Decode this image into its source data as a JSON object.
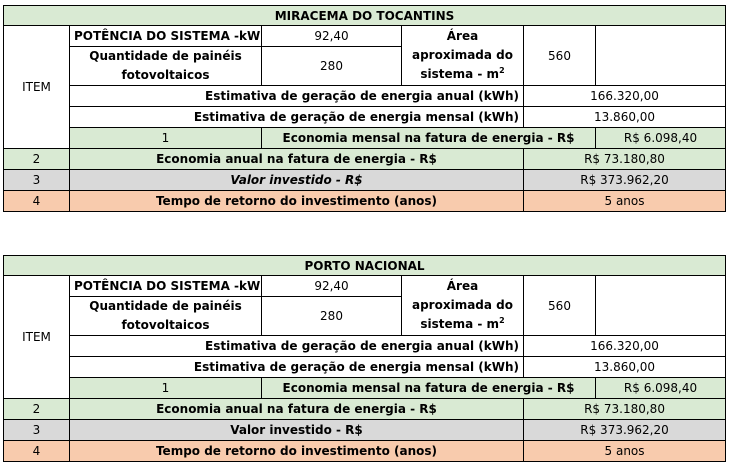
{
  "tables": [
    {
      "title": "MIRACEMA DO TOCANTINS",
      "item_header": "ITEM",
      "potencia_label": "POTÊNCIA DO SISTEMA -kWp",
      "potencia_value": "92,40",
      "paineis_label": "Quantidade de painéis fotovoltaicos",
      "paineis_value": "280",
      "area_label": "Área aproximada do sistema - m",
      "area_sup": "2",
      "area_value": "560",
      "geracao_anual_label": "Estimativa de geração de energia anual (kWh)",
      "geracao_anual_value": "166.320,00",
      "geracao_mensal_label": "Estimativa de geração de energia mensal (kWh)",
      "geracao_mensal_value": "13.860,00",
      "rows": [
        {
          "num": "1",
          "label": "Economia mensal na fatura de energia - R$",
          "value": "R$ 6.098,40"
        },
        {
          "num": "2",
          "label": "Economia anual na fatura de energia - R$",
          "value": "R$ 73.180,80"
        },
        {
          "num": "3",
          "label": "Valor investido - R$",
          "value": "R$ 373.962,20"
        },
        {
          "num": "4",
          "label": "Tempo de retorno do investimento (anos)",
          "value": "5 anos"
        }
      ]
    },
    {
      "title": "PORTO NACIONAL",
      "item_header": "ITEM",
      "potencia_label": "POTÊNCIA DO SISTEMA -kWp",
      "potencia_value": "92,40",
      "paineis_label": "Quantidade de painéis fotovoltaicos",
      "paineis_value": "280",
      "area_label": "Área aproximada do sistema - m",
      "area_sup": "2",
      "area_value": "560",
      "geracao_anual_label": "Estimativa de geração de energia anual (kWh)",
      "geracao_anual_value": "166.320,00",
      "geracao_mensal_label": "Estimativa de geração de energia mensal (kWh)",
      "geracao_mensal_value": "13.860,00",
      "rows": [
        {
          "num": "1",
          "label": "Economia mensal na fatura de energia - R$",
          "value": "R$ 6.098,40"
        },
        {
          "num": "2",
          "label": "Economia anual na fatura de energia - R$",
          "value": "R$ 73.180,80"
        },
        {
          "num": "3",
          "label": "Valor investido - R$",
          "value": "R$ 373.962,20"
        },
        {
          "num": "4",
          "label": "Tempo de retorno do investimento (anos)",
          "value": "5 anos"
        }
      ]
    }
  ]
}
